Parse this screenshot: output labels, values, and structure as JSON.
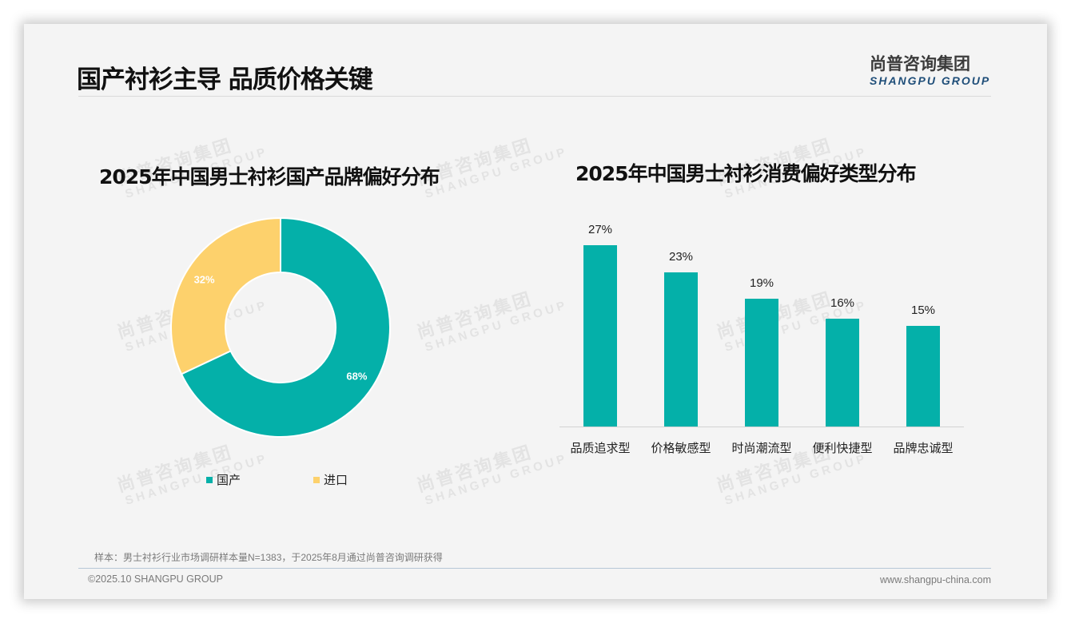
{
  "header": {
    "title": "国产衬衫主导 品质价格关键",
    "logo_cn": "尚普咨询集团",
    "logo_en": "SHANGPU GROUP"
  },
  "watermark": {
    "cn": "尚普咨询集团",
    "en": "SHANGPU GROUP"
  },
  "colors": {
    "teal": "#04b0a9",
    "yellow": "#fdd16c",
    "logo_blue": "#1f4e79"
  },
  "left_chart": {
    "title": "2025年中国男士衬衫国产品牌偏好分布",
    "slices": [
      {
        "label": "国产",
        "value": 68,
        "display": "68%"
      },
      {
        "label": "进口",
        "value": 32,
        "display": "32%"
      }
    ]
  },
  "right_chart": {
    "title": "2025年中国男士衬衫消费偏好类型分布",
    "bars": [
      {
        "label": "品质追求型",
        "value": 27,
        "display": "27%"
      },
      {
        "label": "价格敏感型",
        "value": 23,
        "display": "23%"
      },
      {
        "label": "时尚潮流型",
        "value": 19,
        "display": "19%"
      },
      {
        "label": "便利快捷型",
        "value": 16,
        "display": "16%"
      },
      {
        "label": "品牌忠诚型",
        "value": 15,
        "display": "15%"
      }
    ]
  },
  "footer": {
    "note": "样本：男士衬衫行业市场调研样本量N=1383，于2025年8月通过尚普咨询调研获得",
    "copyright": "©2025.10 SHANGPU GROUP",
    "website": "www.shangpu-china.com"
  },
  "chart_data": [
    {
      "type": "pie",
      "title": "2025年中国男士衬衫国产品牌偏好分布",
      "categories": [
        "国产",
        "进口"
      ],
      "values": [
        68,
        32
      ],
      "unit": "%",
      "donut": true,
      "legend_position": "bottom"
    },
    {
      "type": "bar",
      "title": "2025年中国男士衬衫消费偏好类型分布",
      "categories": [
        "品质追求型",
        "价格敏感型",
        "时尚潮流型",
        "便利快捷型",
        "品牌忠诚型"
      ],
      "values": [
        27,
        23,
        19,
        16,
        15
      ],
      "unit": "%",
      "xlabel": "",
      "ylabel": "",
      "ylim": [
        0,
        30
      ],
      "grid": false,
      "data_labels": true
    }
  ]
}
